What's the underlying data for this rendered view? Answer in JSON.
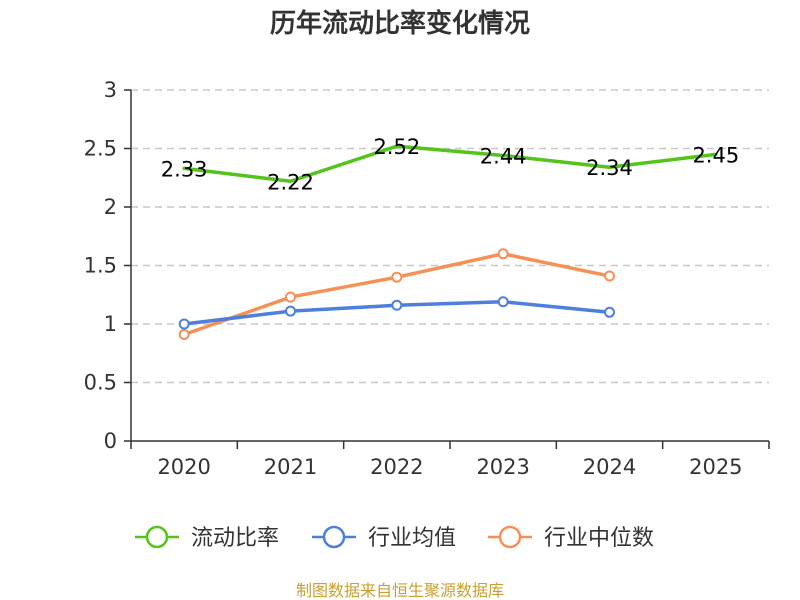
{
  "chart_data": {
    "type": "line",
    "title": "历年流动比率变化情况",
    "categories": [
      "2020",
      "2021",
      "2022",
      "2023",
      "2024",
      "2025"
    ],
    "ylim": [
      0,
      3
    ],
    "yticks": [
      0,
      0.5,
      1,
      1.5,
      2,
      2.5,
      3
    ],
    "ytick_labels": [
      "0",
      "0.5",
      "1",
      "1.5",
      "2",
      "2.5",
      "3"
    ],
    "grid": true,
    "legend_position": "bottom",
    "series": [
      {
        "name": "流动比率",
        "color": "#52c41a",
        "values": [
          2.33,
          2.22,
          2.52,
          2.44,
          2.34,
          2.45
        ],
        "labels": [
          "2.33",
          "2.22",
          "2.52",
          "2.44",
          "2.34",
          "2.45"
        ],
        "show_labels": true,
        "markers": false
      },
      {
        "name": "行业均值",
        "color": "#4f7fdc",
        "values": [
          1.0,
          1.11,
          1.16,
          1.19,
          1.1,
          null
        ],
        "show_labels": false,
        "markers": true
      },
      {
        "name": "行业中位数",
        "color": "#f79056",
        "values": [
          0.91,
          1.23,
          1.4,
          1.6,
          1.41,
          null
        ],
        "show_labels": false,
        "markers": true
      }
    ]
  },
  "footer": {
    "source": "制图数据来自恒生聚源数据库"
  }
}
